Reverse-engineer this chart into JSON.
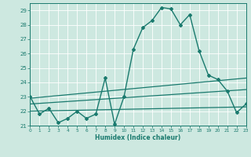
{
  "xlabel": "Humidex (Indice chaleur)",
  "ylabel": "",
  "xlim": [
    0,
    23
  ],
  "ylim": [
    21,
    29.5
  ],
  "yticks": [
    21,
    22,
    23,
    24,
    25,
    26,
    27,
    28,
    29
  ],
  "xticks": [
    0,
    1,
    2,
    3,
    4,
    5,
    6,
    7,
    8,
    9,
    10,
    11,
    12,
    13,
    14,
    15,
    16,
    17,
    18,
    19,
    20,
    21,
    22,
    23
  ],
  "bg_color": "#cde8e0",
  "line_color": "#1a7a6e",
  "grid_color": "#ffffff",
  "lines": [
    {
      "x": [
        0,
        1,
        2,
        3,
        4,
        5,
        6,
        7,
        8,
        9,
        10,
        11,
        12,
        13,
        14,
        15,
        16,
        17,
        18,
        19,
        20,
        21,
        22,
        23
      ],
      "y": [
        23,
        21.8,
        22.2,
        21.2,
        21.5,
        22.0,
        21.5,
        21.8,
        24.3,
        21.1,
        23.0,
        26.3,
        27.8,
        28.3,
        29.2,
        29.1,
        28.0,
        28.7,
        26.2,
        24.5,
        24.2,
        23.4,
        21.9,
        22.5
      ],
      "marker": "D",
      "markersize": 2.0,
      "linewidth": 1.0
    },
    {
      "x": [
        0,
        22,
        23
      ],
      "y": [
        22.8,
        24.2,
        22.5
      ],
      "marker": "D",
      "markersize": 2.0,
      "linewidth": 1.0
    },
    {
      "x": [
        0,
        22,
        23
      ],
      "y": [
        22.5,
        23.5,
        22.5
      ],
      "marker": "D",
      "markersize": 2.0,
      "linewidth": 1.0
    },
    {
      "x": [
        0,
        22,
        23
      ],
      "y": [
        22.2,
        22.8,
        22.5
      ],
      "marker": "D",
      "markersize": 2.0,
      "linewidth": 1.0
    }
  ],
  "straight_lines": [
    {
      "x0": 0,
      "y0": 22.9,
      "x1": 23,
      "y1": 24.3
    },
    {
      "x0": 0,
      "y0": 22.5,
      "x1": 23,
      "y1": 23.5
    },
    {
      "x0": 0,
      "y0": 22.0,
      "x1": 23,
      "y1": 22.3
    }
  ]
}
